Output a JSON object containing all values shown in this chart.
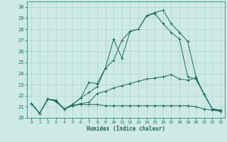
{
  "xlabel": "Humidex (Indice chaleur)",
  "bg_color": "#ceeae6",
  "grid_color": "#aed4cf",
  "line_color": "#1a6b5a",
  "xlim": [
    -0.5,
    23.5
  ],
  "ylim": [
    20,
    30.5
  ],
  "xticks": [
    0,
    1,
    2,
    3,
    4,
    5,
    6,
    7,
    8,
    9,
    10,
    11,
    12,
    13,
    14,
    15,
    16,
    17,
    18,
    19,
    20,
    21,
    22,
    23
  ],
  "yticks": [
    20,
    21,
    22,
    23,
    24,
    25,
    26,
    27,
    28,
    29,
    30
  ],
  "series": [
    [
      21.3,
      20.4,
      21.7,
      21.6,
      20.8,
      21.1,
      21.2,
      21.2,
      21.2,
      21.1,
      21.1,
      21.1,
      21.1,
      21.1,
      21.1,
      21.1,
      21.1,
      21.1,
      21.1,
      21.1,
      21.0,
      20.8,
      20.7,
      20.6
    ],
    [
      21.3,
      20.4,
      21.7,
      21.5,
      20.8,
      21.1,
      21.3,
      21.4,
      22.2,
      22.4,
      22.7,
      22.9,
      23.1,
      23.3,
      23.5,
      23.6,
      23.7,
      23.9,
      23.5,
      23.4,
      23.6,
      22.1,
      20.8,
      20.7
    ],
    [
      21.3,
      20.4,
      21.7,
      21.5,
      20.8,
      21.2,
      21.8,
      23.2,
      23.1,
      24.5,
      25.2,
      27.0,
      27.8,
      28.0,
      29.2,
      29.5,
      29.7,
      28.5,
      27.7,
      26.9,
      23.7,
      22.1,
      20.8,
      20.7
    ],
    [
      21.3,
      20.4,
      21.7,
      21.5,
      20.8,
      21.2,
      21.8,
      22.3,
      22.8,
      24.5,
      27.1,
      25.4,
      27.8,
      28.0,
      29.2,
      29.4,
      28.5,
      27.7,
      27.1,
      23.7,
      23.5,
      22.1,
      20.8,
      20.6
    ]
  ]
}
